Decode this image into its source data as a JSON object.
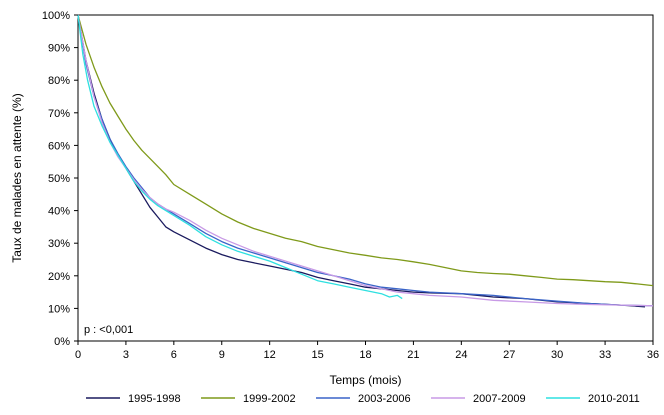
{
  "chart_data": {
    "type": "line",
    "title": "",
    "xlabel": "Temps (mois)",
    "ylabel": "Taux de malades en attente (%)",
    "xlim": [
      0,
      36
    ],
    "ylim": [
      0,
      100
    ],
    "x_ticks": [
      0,
      3,
      6,
      9,
      12,
      15,
      18,
      21,
      24,
      27,
      30,
      33,
      36
    ],
    "y_ticks": [
      0,
      10,
      20,
      30,
      40,
      50,
      60,
      70,
      80,
      90,
      100
    ],
    "y_tick_labels": [
      "0%",
      "10%",
      "20%",
      "30%",
      "40%",
      "50%",
      "60%",
      "70%",
      "80%",
      "90%",
      "100%"
    ],
    "grid": false,
    "legend_position": "bottom",
    "annotation": "p : <0,001",
    "series": [
      {
        "name": "1995-1998",
        "color": "#1a1a5e",
        "points": [
          [
            0,
            100
          ],
          [
            0.5,
            86
          ],
          [
            1,
            76
          ],
          [
            1.5,
            68
          ],
          [
            2,
            62
          ],
          [
            2.5,
            57
          ],
          [
            3,
            53
          ],
          [
            3.5,
            49
          ],
          [
            4,
            45
          ],
          [
            4.5,
            41
          ],
          [
            5,
            38
          ],
          [
            5.5,
            35
          ],
          [
            6,
            33.5
          ],
          [
            7,
            31
          ],
          [
            8,
            28.5
          ],
          [
            9,
            26.5
          ],
          [
            10,
            25
          ],
          [
            11,
            24
          ],
          [
            12,
            23
          ],
          [
            13,
            22
          ],
          [
            14,
            21
          ],
          [
            15,
            19.5
          ],
          [
            16,
            18.5
          ],
          [
            17,
            17.5
          ],
          [
            18,
            16.5
          ],
          [
            19,
            16
          ],
          [
            20,
            15.5
          ],
          [
            21,
            15
          ],
          [
            22,
            14.8
          ],
          [
            24,
            14.5
          ],
          [
            26,
            13.5
          ],
          [
            28,
            13
          ],
          [
            30,
            12
          ],
          [
            32,
            11.5
          ],
          [
            34,
            11
          ],
          [
            35.5,
            10.5
          ]
        ]
      },
      {
        "name": "1999-2002",
        "color": "#7f9a1a",
        "points": [
          [
            0,
            100
          ],
          [
            0.5,
            91
          ],
          [
            1,
            84
          ],
          [
            1.5,
            78
          ],
          [
            2,
            73
          ],
          [
            2.5,
            69
          ],
          [
            3,
            65
          ],
          [
            3.5,
            61.5
          ],
          [
            4,
            58.5
          ],
          [
            4.5,
            56
          ],
          [
            5,
            53.5
          ],
          [
            5.5,
            51
          ],
          [
            6,
            48
          ],
          [
            7,
            45
          ],
          [
            8,
            42
          ],
          [
            9,
            39
          ],
          [
            10,
            36.5
          ],
          [
            11,
            34.5
          ],
          [
            12,
            33
          ],
          [
            13,
            31.5
          ],
          [
            14,
            30.5
          ],
          [
            15,
            29
          ],
          [
            16,
            28
          ],
          [
            17,
            27
          ],
          [
            18,
            26.3
          ],
          [
            19,
            25.5
          ],
          [
            20,
            25
          ],
          [
            21,
            24.3
          ],
          [
            22,
            23.5
          ],
          [
            23,
            22.5
          ],
          [
            24,
            21.5
          ],
          [
            25,
            21
          ],
          [
            26,
            20.7
          ],
          [
            27,
            20.5
          ],
          [
            28,
            20
          ],
          [
            29,
            19.5
          ],
          [
            30,
            19
          ],
          [
            31,
            18.8
          ],
          [
            32,
            18.5
          ],
          [
            33,
            18.2
          ],
          [
            34,
            18
          ],
          [
            35,
            17.5
          ],
          [
            36,
            17
          ]
        ]
      },
      {
        "name": "2003-2006",
        "color": "#3a64c8",
        "points": [
          [
            0,
            100
          ],
          [
            0.5,
            85
          ],
          [
            1,
            75
          ],
          [
            1.5,
            68
          ],
          [
            2,
            62
          ],
          [
            2.5,
            57.5
          ],
          [
            3,
            53.5
          ],
          [
            3.5,
            50
          ],
          [
            4,
            47
          ],
          [
            4.5,
            44
          ],
          [
            5,
            42
          ],
          [
            5.5,
            40.5
          ],
          [
            6,
            39
          ],
          [
            7,
            36
          ],
          [
            8,
            33
          ],
          [
            9,
            30.5
          ],
          [
            10,
            28.5
          ],
          [
            11,
            27
          ],
          [
            12,
            25.5
          ],
          [
            13,
            24
          ],
          [
            14,
            22.5
          ],
          [
            15,
            21
          ],
          [
            16,
            20
          ],
          [
            17,
            19
          ],
          [
            18,
            17.5
          ],
          [
            19,
            16.5
          ],
          [
            20,
            16
          ],
          [
            21,
            15.5
          ],
          [
            22,
            15
          ],
          [
            24,
            14.5
          ],
          [
            26,
            14
          ],
          [
            28,
            13
          ],
          [
            30,
            12.2
          ],
          [
            32,
            11.5
          ],
          [
            34,
            11
          ],
          [
            36,
            10.8
          ]
        ]
      },
      {
        "name": "2007-2009",
        "color": "#c89ae6",
        "points": [
          [
            0,
            100
          ],
          [
            0.5,
            86
          ],
          [
            1,
            75
          ],
          [
            1.5,
            67
          ],
          [
            2,
            61
          ],
          [
            2.5,
            56.5
          ],
          [
            3,
            53
          ],
          [
            3.5,
            49.5
          ],
          [
            4,
            46.5
          ],
          [
            4.5,
            44
          ],
          [
            5,
            42
          ],
          [
            5.5,
            40.5
          ],
          [
            6,
            39.5
          ],
          [
            7,
            37
          ],
          [
            8,
            34
          ],
          [
            9,
            31.5
          ],
          [
            10,
            29.5
          ],
          [
            11,
            27.5
          ],
          [
            12,
            26
          ],
          [
            13,
            24.5
          ],
          [
            14,
            23
          ],
          [
            15,
            21.5
          ],
          [
            16,
            20
          ],
          [
            17,
            18.5
          ],
          [
            18,
            17
          ],
          [
            19,
            16
          ],
          [
            20,
            15
          ],
          [
            21,
            14.5
          ],
          [
            22,
            14
          ],
          [
            24,
            13.5
          ],
          [
            26,
            12.5
          ],
          [
            28,
            12
          ],
          [
            30,
            11.5
          ],
          [
            32,
            11.2
          ],
          [
            34,
            11
          ],
          [
            36,
            10.8
          ]
        ]
      },
      {
        "name": "2010-2011",
        "color": "#2ee0e0",
        "points": [
          [
            0,
            100
          ],
          [
            0.3,
            88
          ],
          [
            0.6,
            80
          ],
          [
            1,
            72
          ],
          [
            1.5,
            66
          ],
          [
            2,
            61
          ],
          [
            2.5,
            57
          ],
          [
            3,
            53
          ],
          [
            3.5,
            49
          ],
          [
            4,
            46
          ],
          [
            4.5,
            43.5
          ],
          [
            5,
            41.5
          ],
          [
            5.5,
            40
          ],
          [
            6,
            38.5
          ],
          [
            7,
            35.5
          ],
          [
            8,
            32
          ],
          [
            9,
            29.5
          ],
          [
            10,
            27.5
          ],
          [
            11,
            26
          ],
          [
            12,
            24.5
          ],
          [
            13,
            22.5
          ],
          [
            14,
            20.5
          ],
          [
            15,
            18.5
          ],
          [
            16,
            17.5
          ],
          [
            17,
            16.5
          ],
          [
            18,
            15.5
          ],
          [
            19,
            14.5
          ],
          [
            19.5,
            13.5
          ],
          [
            20,
            14
          ],
          [
            20.3,
            13
          ]
        ]
      }
    ]
  }
}
